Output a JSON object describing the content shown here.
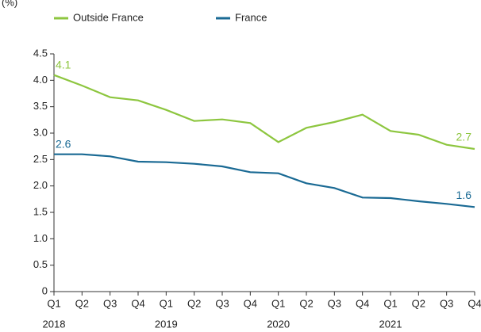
{
  "chart_data": {
    "type": "line",
    "unit": "(%)",
    "categories": [
      "Q1",
      "Q2",
      "Q3",
      "Q4",
      "Q1",
      "Q2",
      "Q3",
      "Q4",
      "Q1",
      "Q2",
      "Q3",
      "Q4",
      "Q1",
      "Q2",
      "Q3",
      "Q4"
    ],
    "years": [
      "2018",
      "2019",
      "2020",
      "2021"
    ],
    "series": [
      {
        "name": "Outside France",
        "color": "#8dc63f",
        "values": [
          4.1,
          3.9,
          3.68,
          3.62,
          3.44,
          3.23,
          3.26,
          3.19,
          2.83,
          3.1,
          3.21,
          3.35,
          3.04,
          2.97,
          2.78,
          2.7
        ]
      },
      {
        "name": "France",
        "color": "#1a6a94",
        "values": [
          2.6,
          2.6,
          2.56,
          2.46,
          2.45,
          2.42,
          2.37,
          2.26,
          2.24,
          2.05,
          1.96,
          1.78,
          1.77,
          1.71,
          1.66,
          1.6
        ]
      }
    ],
    "ylim": [
      0,
      4.5
    ],
    "yticks": [
      0,
      0.5,
      {
        "value": 1,
        "label": "1.0"
      },
      1.5,
      {
        "value": 2,
        "label": "2.0"
      },
      2.5,
      {
        "value": 3,
        "label": "3.0"
      },
      3.5,
      {
        "value": 4,
        "label": "4.0"
      },
      4.5
    ],
    "grid": false
  }
}
